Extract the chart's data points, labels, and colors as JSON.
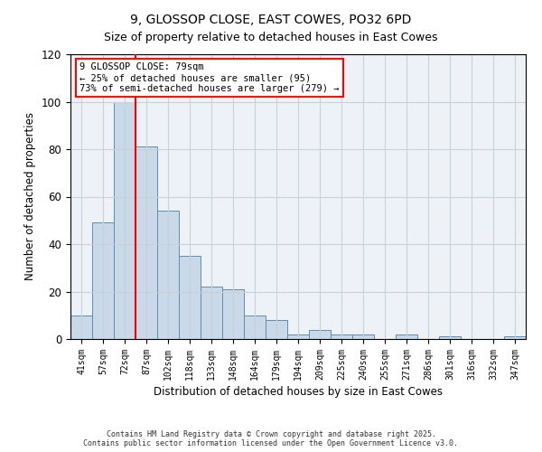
{
  "title_line1": "9, GLOSSOP CLOSE, EAST COWES, PO32 6PD",
  "title_line2": "Size of property relative to detached houses in East Cowes",
  "xlabel": "Distribution of detached houses by size in East Cowes",
  "ylabel": "Number of detached properties",
  "categories": [
    "41sqm",
    "57sqm",
    "72sqm",
    "87sqm",
    "102sqm",
    "118sqm",
    "133sqm",
    "148sqm",
    "164sqm",
    "179sqm",
    "194sqm",
    "209sqm",
    "225sqm",
    "240sqm",
    "255sqm",
    "271sqm",
    "286sqm",
    "301sqm",
    "316sqm",
    "332sqm",
    "347sqm"
  ],
  "values": [
    10,
    49,
    100,
    81,
    54,
    35,
    22,
    21,
    10,
    8,
    2,
    4,
    2,
    2,
    0,
    2,
    0,
    1,
    0,
    0,
    1
  ],
  "bar_color": "#c9d9e8",
  "bar_edge_color": "#5b8db8",
  "red_line_index": 2,
  "annotation_text": "9 GLOSSOP CLOSE: 79sqm\n← 25% of detached houses are smaller (95)\n73% of semi-detached houses are larger (279) →",
  "annotation_box_color": "white",
  "annotation_box_edge_color": "red",
  "red_line_color": "red",
  "ylim": [
    0,
    120
  ],
  "yticks": [
    0,
    20,
    40,
    60,
    80,
    100,
    120
  ],
  "grid_color": "#c8d0d8",
  "background_color": "#eef2f7",
  "footer_line1": "Contains HM Land Registry data © Crown copyright and database right 2025.",
  "footer_line2": "Contains public sector information licensed under the Open Government Licence v3.0."
}
